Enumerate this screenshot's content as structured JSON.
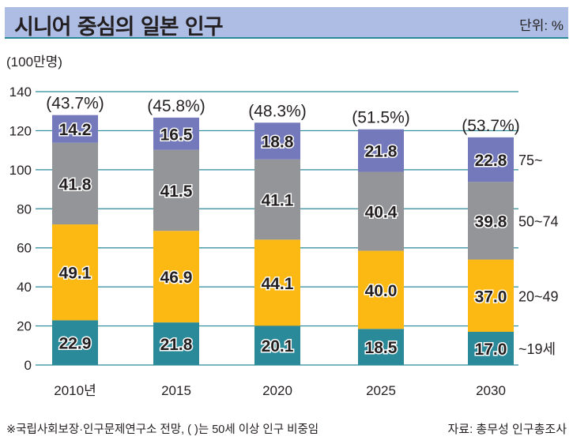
{
  "header": {
    "title": "시니어 중심의 일본 인구",
    "unit": "단위: %"
  },
  "chart_data": {
    "type": "bar",
    "stacked": true,
    "title": "시니어 중심의 일본 인구",
    "ylabel": "(100만명)",
    "ylim": [
      0,
      140
    ],
    "yticks": [
      0,
      20,
      40,
      60,
      80,
      100,
      120,
      140
    ],
    "categories": [
      "2010년",
      "2015",
      "2020",
      "2025",
      "2030"
    ],
    "series": [
      {
        "name": "~19세",
        "color": "#2b8a9a",
        "values": [
          22.9,
          21.8,
          20.1,
          18.5,
          17.0
        ]
      },
      {
        "name": "20~49",
        "color": "#fcb913",
        "values": [
          49.1,
          46.9,
          44.1,
          40.0,
          37.0
        ]
      },
      {
        "name": "50~74",
        "color": "#939598",
        "values": [
          41.8,
          41.5,
          41.1,
          40.4,
          39.8
        ]
      },
      {
        "name": "75~",
        "color": "#7479bb",
        "values": [
          14.2,
          16.5,
          18.8,
          21.8,
          22.8
        ]
      }
    ],
    "value_labels": [
      [
        "22.9",
        "21.8",
        "20.1",
        "18.5",
        "17.0"
      ],
      [
        "49.1",
        "46.9",
        "44.1",
        "40.0",
        "37.0"
      ],
      [
        "41.8",
        "41.5",
        "41.1",
        "40.4",
        "39.8"
      ],
      [
        "14.2",
        "16.5",
        "18.8",
        "21.8",
        "22.8"
      ]
    ],
    "annotations": [
      "(43.7%)",
      "(45.8%)",
      "(48.3%)",
      "(51.5%)",
      "(53.7%)"
    ],
    "grid": true,
    "legend": "right"
  },
  "footer": {
    "note": "※국립사회보장·인구문제연구소 전망, (  )는 50세 이상 인구 비중임",
    "source": "자료: 총무성 인구총조사"
  }
}
